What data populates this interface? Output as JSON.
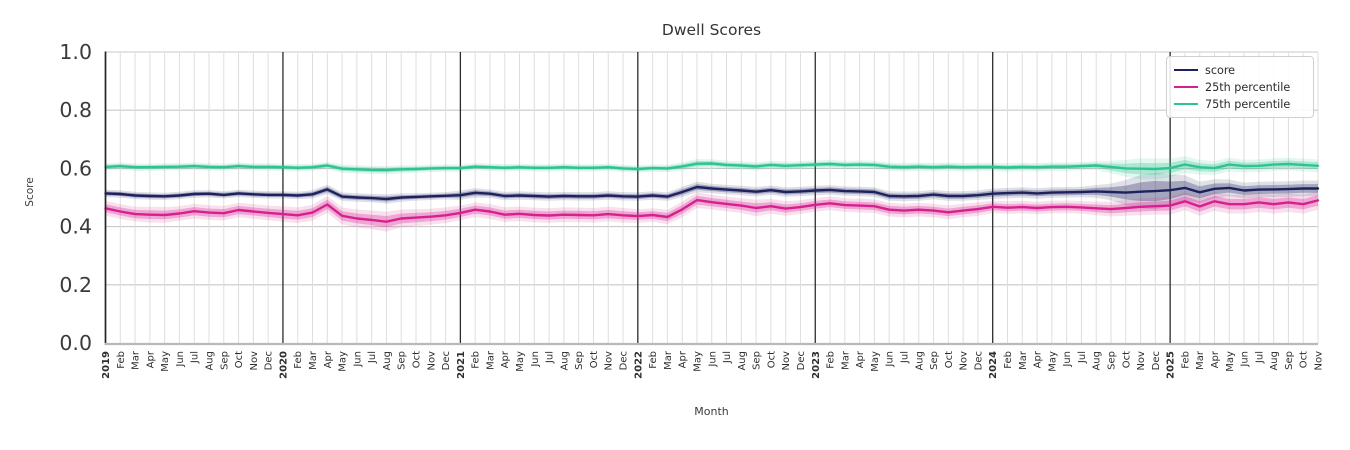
{
  "chart_data": {
    "type": "line",
    "title": "Dwell Scores",
    "xlabel": "Month",
    "ylabel": "Score",
    "ylim": [
      0.0,
      1.0
    ],
    "yticks": [
      0.0,
      0.2,
      0.4,
      0.6,
      0.8,
      1.0
    ],
    "grid": true,
    "legend_position": "upper right",
    "x_labels": [
      "2019",
      "Feb",
      "Mar",
      "Apr",
      "May",
      "Jun",
      "Jul",
      "Aug",
      "Sep",
      "Oct",
      "Nov",
      "Dec",
      "2020",
      "Feb",
      "Mar",
      "Apr",
      "May",
      "Jun",
      "Jul",
      "Aug",
      "Sep",
      "Oct",
      "Nov",
      "Dec",
      "2021",
      "Feb",
      "Mar",
      "Apr",
      "May",
      "Jun",
      "Jul",
      "Aug",
      "Sep",
      "Oct",
      "Nov",
      "Dec",
      "2022",
      "Feb",
      "Mar",
      "Apr",
      "May",
      "Jun",
      "Jul",
      "Aug",
      "Sep",
      "Oct",
      "Nov",
      "Dec",
      "2023",
      "Feb",
      "Mar",
      "Apr",
      "May",
      "Jun",
      "Jul",
      "Aug",
      "Sep",
      "Oct",
      "Nov",
      "Dec",
      "2024",
      "Feb",
      "Mar",
      "Apr",
      "May",
      "Jun",
      "Jul",
      "Aug",
      "Sep",
      "Oct",
      "Nov",
      "Dec",
      "2025",
      "Feb",
      "Mar",
      "Apr",
      "May",
      "Jun",
      "Jul",
      "Aug",
      "Sep",
      "Oct",
      "Nov"
    ],
    "series": [
      {
        "name": "score",
        "color": "#1e215d",
        "values": [
          0.514,
          0.512,
          0.507,
          0.505,
          0.504,
          0.507,
          0.512,
          0.513,
          0.509,
          0.514,
          0.511,
          0.509,
          0.509,
          0.507,
          0.511,
          0.528,
          0.503,
          0.5,
          0.498,
          0.495,
          0.5,
          0.502,
          0.504,
          0.506,
          0.508,
          0.516,
          0.513,
          0.505,
          0.507,
          0.505,
          0.503,
          0.505,
          0.504,
          0.504,
          0.507,
          0.504,
          0.503,
          0.507,
          0.503,
          0.519,
          0.536,
          0.531,
          0.527,
          0.524,
          0.52,
          0.525,
          0.519,
          0.521,
          0.524,
          0.526,
          0.522,
          0.521,
          0.519,
          0.505,
          0.504,
          0.505,
          0.51,
          0.505,
          0.505,
          0.508,
          0.513,
          0.515,
          0.517,
          0.514,
          0.517,
          0.518,
          0.519,
          0.521,
          0.519,
          0.517,
          0.52,
          0.522,
          0.525,
          0.533,
          0.518,
          0.53,
          0.533,
          0.524,
          0.527,
          0.528,
          0.529,
          0.531,
          0.531
        ],
        "band": [
          0.007,
          0.007,
          0.007,
          0.007,
          0.007,
          0.007,
          0.007,
          0.007,
          0.007,
          0.007,
          0.007,
          0.007,
          0.007,
          0.007,
          0.008,
          0.009,
          0.008,
          0.008,
          0.008,
          0.009,
          0.008,
          0.007,
          0.007,
          0.007,
          0.009,
          0.009,
          0.008,
          0.008,
          0.008,
          0.008,
          0.008,
          0.008,
          0.008,
          0.008,
          0.008,
          0.008,
          0.008,
          0.008,
          0.008,
          0.01,
          0.01,
          0.009,
          0.009,
          0.009,
          0.009,
          0.009,
          0.009,
          0.009,
          0.009,
          0.009,
          0.009,
          0.009,
          0.009,
          0.009,
          0.009,
          0.009,
          0.009,
          0.009,
          0.009,
          0.009,
          0.01,
          0.01,
          0.01,
          0.01,
          0.01,
          0.01,
          0.01,
          0.012,
          0.016,
          0.024,
          0.032,
          0.035,
          0.03,
          0.024,
          0.02,
          0.018,
          0.016,
          0.015,
          0.015,
          0.015,
          0.015,
          0.015,
          0.015
        ]
      },
      {
        "name": "25th percentile",
        "color": "#d6208f",
        "values": [
          0.463,
          0.452,
          0.443,
          0.441,
          0.44,
          0.445,
          0.453,
          0.448,
          0.446,
          0.457,
          0.452,
          0.447,
          0.443,
          0.439,
          0.448,
          0.476,
          0.437,
          0.428,
          0.423,
          0.417,
          0.428,
          0.431,
          0.434,
          0.439,
          0.447,
          0.458,
          0.452,
          0.441,
          0.444,
          0.44,
          0.438,
          0.441,
          0.44,
          0.439,
          0.443,
          0.439,
          0.436,
          0.44,
          0.433,
          0.459,
          0.491,
          0.484,
          0.478,
          0.472,
          0.464,
          0.47,
          0.462,
          0.467,
          0.475,
          0.48,
          0.474,
          0.472,
          0.47,
          0.458,
          0.455,
          0.458,
          0.455,
          0.449,
          0.455,
          0.46,
          0.468,
          0.465,
          0.467,
          0.464,
          0.467,
          0.468,
          0.466,
          0.463,
          0.46,
          0.464,
          0.468,
          0.47,
          0.472,
          0.487,
          0.469,
          0.487,
          0.477,
          0.477,
          0.483,
          0.477,
          0.483,
          0.477,
          0.49
        ],
        "band": [
          0.014,
          0.014,
          0.014,
          0.015,
          0.015,
          0.014,
          0.014,
          0.014,
          0.014,
          0.014,
          0.014,
          0.014,
          0.015,
          0.015,
          0.015,
          0.016,
          0.016,
          0.017,
          0.018,
          0.019,
          0.017,
          0.016,
          0.015,
          0.015,
          0.014,
          0.014,
          0.014,
          0.014,
          0.014,
          0.014,
          0.014,
          0.014,
          0.014,
          0.014,
          0.014,
          0.014,
          0.013,
          0.013,
          0.014,
          0.015,
          0.015,
          0.014,
          0.014,
          0.014,
          0.016,
          0.014,
          0.014,
          0.013,
          0.013,
          0.013,
          0.013,
          0.013,
          0.013,
          0.013,
          0.013,
          0.013,
          0.013,
          0.013,
          0.013,
          0.013,
          0.012,
          0.012,
          0.012,
          0.012,
          0.012,
          0.012,
          0.012,
          0.013,
          0.014,
          0.015,
          0.016,
          0.016,
          0.017,
          0.017,
          0.018,
          0.018,
          0.018,
          0.018,
          0.018,
          0.018,
          0.018,
          0.018,
          0.018
        ]
      },
      {
        "name": "75th percentile",
        "color": "#2ec492",
        "values": [
          0.605,
          0.608,
          0.604,
          0.604,
          0.605,
          0.606,
          0.608,
          0.605,
          0.604,
          0.608,
          0.605,
          0.605,
          0.604,
          0.602,
          0.604,
          0.61,
          0.599,
          0.597,
          0.595,
          0.594,
          0.597,
          0.598,
          0.6,
          0.601,
          0.601,
          0.606,
          0.604,
          0.602,
          0.604,
          0.602,
          0.602,
          0.604,
          0.602,
          0.602,
          0.604,
          0.6,
          0.598,
          0.601,
          0.6,
          0.607,
          0.616,
          0.617,
          0.612,
          0.61,
          0.607,
          0.612,
          0.609,
          0.611,
          0.613,
          0.615,
          0.612,
          0.613,
          0.612,
          0.606,
          0.604,
          0.606,
          0.604,
          0.606,
          0.604,
          0.605,
          0.605,
          0.603,
          0.605,
          0.604,
          0.606,
          0.606,
          0.608,
          0.61,
          0.605,
          0.6,
          0.599,
          0.598,
          0.601,
          0.613,
          0.604,
          0.601,
          0.613,
          0.608,
          0.609,
          0.613,
          0.615,
          0.612,
          0.609
        ],
        "band": [
          0.007,
          0.007,
          0.007,
          0.007,
          0.007,
          0.007,
          0.007,
          0.007,
          0.007,
          0.007,
          0.007,
          0.007,
          0.007,
          0.007,
          0.007,
          0.007,
          0.008,
          0.008,
          0.008,
          0.008,
          0.008,
          0.007,
          0.007,
          0.007,
          0.007,
          0.007,
          0.007,
          0.007,
          0.007,
          0.007,
          0.007,
          0.007,
          0.007,
          0.007,
          0.007,
          0.007,
          0.007,
          0.007,
          0.007,
          0.008,
          0.009,
          0.008,
          0.008,
          0.008,
          0.008,
          0.008,
          0.008,
          0.008,
          0.008,
          0.008,
          0.008,
          0.008,
          0.008,
          0.008,
          0.008,
          0.008,
          0.008,
          0.008,
          0.008,
          0.008,
          0.008,
          0.008,
          0.008,
          0.008,
          0.008,
          0.008,
          0.008,
          0.008,
          0.012,
          0.016,
          0.02,
          0.02,
          0.018,
          0.016,
          0.014,
          0.013,
          0.013,
          0.012,
          0.012,
          0.012,
          0.012,
          0.012,
          0.012
        ]
      }
    ],
    "colors": {
      "grid_minor": "#dedede",
      "grid_major": "#c9c9c9",
      "year_line": "#2b2b2b",
      "spine": "#262626",
      "baseline": "#b9b9b9",
      "tick_text": "#2e2e2e"
    }
  }
}
